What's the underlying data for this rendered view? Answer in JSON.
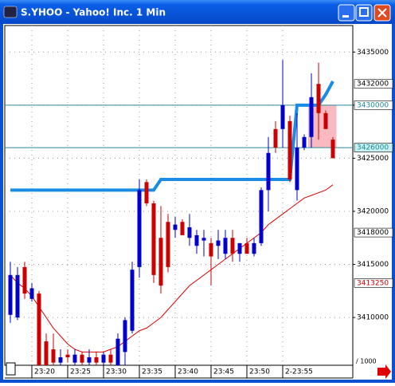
{
  "window_title": "S.YHOO - Yahoo! Inc. 1 Min",
  "chart_data": {
    "type": "candlestick",
    "categories": [
      null,
      null,
      null,
      "23:20",
      null,
      null,
      null,
      null,
      "23:25",
      null,
      null,
      null,
      null,
      "23:30",
      null,
      null,
      null,
      null,
      "23:35",
      null,
      null,
      null,
      null,
      "23:40",
      null,
      null,
      null,
      null,
      "23:45",
      null,
      null,
      null,
      null,
      "23:50",
      null,
      null,
      null,
      null,
      "2-23:55",
      null,
      null,
      null,
      null,
      null,
      null,
      null
    ],
    "open": [
      3410250,
      3410000,
      3414750,
      3411750,
      3412250,
      3407750,
      3407000,
      3405750,
      3406500,
      3405750,
      3406500,
      3405750,
      3406250,
      3405750,
      3406500,
      3405500,
      3406750,
      3408750,
      3414750,
      3422750,
      3420750,
      3417500,
      3419000,
      3418250,
      3419000,
      3417500,
      3416750,
      3417250,
      3417000,
      3416750,
      3416000,
      3417500,
      3416000,
      3417000,
      3416000,
      3417000,
      3422000,
      3427750,
      3427750,
      3428500,
      3422000,
      3426000,
      3427000,
      3432000,
      3429250,
      3426750
    ],
    "high": [
      3415250,
      3414750,
      3415250,
      3413250,
      3412500,
      3408500,
      3408500,
      3407000,
      3407000,
      3407000,
      3406750,
      3407000,
      3406750,
      3406750,
      3407000,
      3408500,
      3410000,
      3415250,
      3423000,
      3423000,
      3421000,
      3420500,
      3419750,
      3419500,
      3419250,
      3419750,
      3418250,
      3418250,
      3417500,
      3418250,
      3418250,
      3418250,
      3417000,
      3417500,
      3417500,
      3422250,
      3427000,
      3428500,
      3434250,
      3429000,
      3429250,
      3427250,
      3433000,
      3434000,
      3429500,
      3427000
    ],
    "low": [
      3409500,
      3409750,
      3411750,
      3411500,
      3405500,
      3405500,
      3405500,
      3405500,
      3405750,
      3405500,
      3405500,
      3405500,
      3405500,
      3405500,
      3405500,
      3405500,
      3405500,
      3408500,
      3413750,
      3420500,
      3413250,
      3412250,
      3414250,
      3417500,
      3417750,
      3416750,
      3416000,
      3415750,
      3413000,
      3415500,
      3415500,
      3415250,
      3415250,
      3416000,
      3415750,
      3416750,
      3420000,
      3425500,
      3426000,
      3422750,
      3421000,
      3425750,
      3426000,
      3426750,
      3427750,
      3425000
    ],
    "close": [
      3414000,
      3414000,
      3412250,
      3412750,
      3405500,
      3405500,
      3405750,
      3406250,
      3406250,
      3406500,
      3405750,
      3406250,
      3405750,
      3406500,
      3405750,
      3408000,
      3409750,
      3414500,
      3422000,
      3420750,
      3414000,
      3413000,
      3414750,
      3418750,
      3417750,
      3418500,
      3417750,
      3417500,
      3415750,
      3417250,
      3417500,
      3416000,
      3417000,
      3416000,
      3417000,
      3422000,
      3425500,
      3426000,
      3430000,
      3423000,
      3426000,
      3427000,
      3430750,
      3429250,
      3427750,
      3425000
    ],
    "up_color": "#0000cc",
    "down_color": "#cc0000",
    "series": [
      {
        "color": "#1a8ce6",
        "values": [
          3422000,
          3422000,
          3422000,
          3422000,
          3422000,
          3422000,
          3422000,
          3422000,
          3422000,
          3422000,
          3422000,
          3422000,
          3422000,
          3422000,
          3422000,
          3422000,
          3422000,
          3422000,
          3422000,
          3422000,
          3422000,
          3423000,
          3423000,
          3423000,
          3423000,
          3423000,
          3423000,
          3423000,
          3423000,
          3423000,
          3423000,
          3423000,
          3423000,
          3423000,
          3423000,
          3423000,
          3423000,
          3423000,
          3423000,
          3423000,
          3430000,
          3430000,
          3430000,
          3430000,
          3431000,
          3432250
        ]
      },
      {
        "color": "#e00000",
        "values": [
          3414000,
          3413250,
          3412750,
          3412000,
          3411000,
          3410000,
          3409000,
          3408250,
          3407500,
          3407000,
          3406750,
          3406750,
          3406750,
          3406750,
          3407000,
          3407250,
          3407750,
          3408250,
          3408750,
          3409000,
          3409500,
          3410000,
          3410750,
          3411500,
          3412250,
          3413000,
          3413500,
          3414000,
          3414500,
          3415000,
          3415500,
          3416000,
          3416500,
          3417000,
          3417500,
          3418000,
          3418750,
          3419250,
          3419750,
          3420250,
          3420750,
          3421250,
          3421500,
          3421750,
          3422000,
          3422500
        ]
      }
    ],
    "hlines": [
      3430000,
      3426000
    ],
    "hline_color": "#2a8a9a",
    "highlight_color": "#f7a8b0",
    "ylim": [
      3405500,
      3437500
    ],
    "yticks": [
      3435000,
      3430000,
      3425000,
      3420000,
      3415000,
      3410000
    ],
    "y_unit_label": "/ 1000",
    "grid": true,
    "price_tags": [
      {
        "value": 3432000,
        "color": "#000000",
        "background": "#ffffff"
      },
      {
        "value": 3430000,
        "color": "#1a8a9a",
        "background": "#ffffff"
      },
      {
        "value": 3426000,
        "color": "#1a8a9a",
        "background": "#c8f0f0"
      },
      {
        "value": 3418000,
        "color": "#000000",
        "background": "#ffffff"
      },
      {
        "value": 3413250,
        "color": "#cc0000",
        "background": "#ffffff"
      }
    ]
  }
}
